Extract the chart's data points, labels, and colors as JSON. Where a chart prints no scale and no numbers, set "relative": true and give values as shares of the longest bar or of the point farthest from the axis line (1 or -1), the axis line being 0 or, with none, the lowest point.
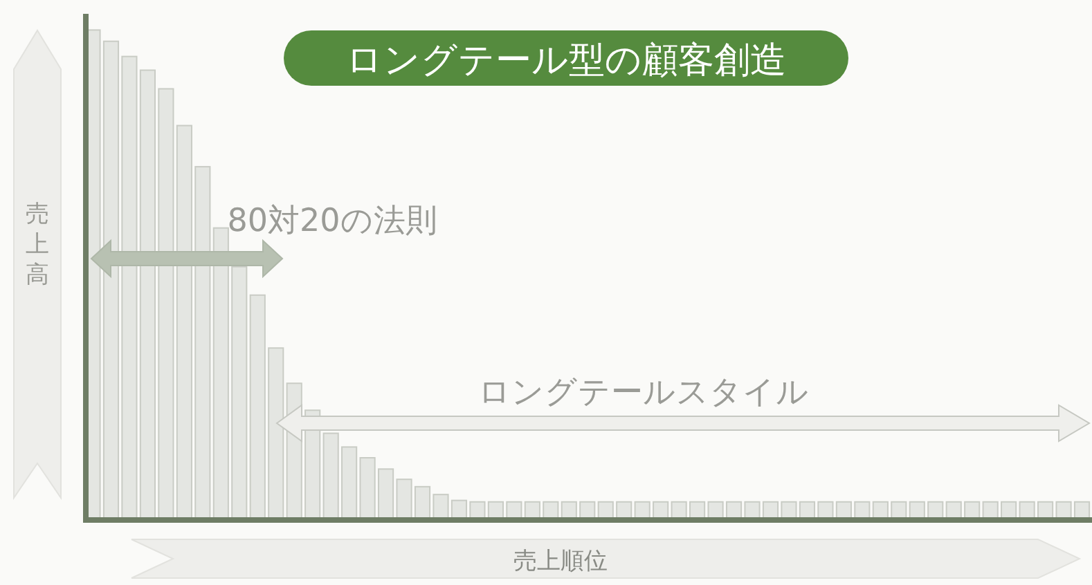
{
  "chart_data": {
    "type": "bar",
    "title": "ロングテール型の顧客創造",
    "xlabel": "売上順位",
    "ylabel": "売上高",
    "relative": true,
    "annotations": [
      "80対20の法則",
      "ロングテールスタイル"
    ],
    "categories": [
      null,
      null,
      null,
      null,
      null,
      null,
      null,
      null,
      null,
      null,
      null,
      null,
      null,
      null,
      null,
      null,
      null,
      null,
      null,
      null,
      null,
      null,
      null,
      null,
      null,
      null,
      null,
      null,
      null,
      null,
      null,
      null,
      null,
      null,
      null,
      null,
      null,
      null,
      null,
      null,
      null,
      null,
      null,
      null,
      null,
      null,
      null,
      null,
      null,
      null,
      null,
      null,
      null,
      null,
      null
    ],
    "values": [
      1,
      0.977,
      0.946,
      0.918,
      0.88,
      0.805,
      0.721,
      0.596,
      0.517,
      0.459,
      0.351,
      0.279,
      0.224,
      0.177,
      0.149,
      0.127,
      0.104,
      0.083,
      0.068,
      0.052,
      0.04,
      0.037,
      0.037,
      0.037,
      0.037,
      0.037,
      0.037,
      0.037,
      0.037,
      0.037,
      0.037,
      0.037,
      0.037,
      0.037,
      0.037,
      0.037,
      0.037,
      0.037,
      0.037,
      0.037,
      0.037,
      0.037,
      0.037,
      0.037,
      0.037,
      0.037,
      0.037,
      0.037,
      0.037,
      0.037,
      0.037,
      0.037,
      0.037,
      0.037,
      0.037
    ],
    "color": "#e4e6e2"
  }
}
